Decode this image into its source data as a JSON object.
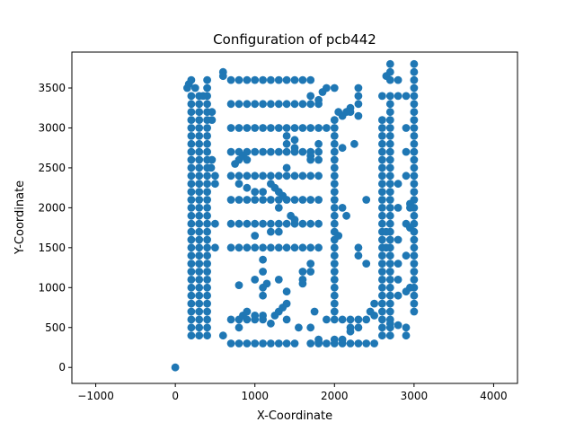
{
  "chart_data": {
    "type": "scatter",
    "title": "Configuration of pcb442",
    "xlabel": "X-Coordinate",
    "ylabel": "Y-Coordinate",
    "xlim": [
      -1300,
      4300
    ],
    "ylim": [
      -200,
      3950
    ],
    "xticks": [
      -1000,
      0,
      1000,
      2000,
      3000,
      4000
    ],
    "yticks": [
      0,
      500,
      1000,
      1500,
      2000,
      2500,
      3000,
      3500
    ],
    "grid": false,
    "legend": "none",
    "marker_color": "#1f77b4",
    "point_groups": [
      {
        "xs": [
          200,
          300,
          400
        ],
        "y_from": 400,
        "y_to": 3400,
        "y_step": 100
      },
      {
        "xs": [
          3000
        ],
        "y_from": 700,
        "y_to": 3800,
        "y_step": 100
      },
      {
        "xs": [
          2600,
          2700
        ],
        "y_from": 400,
        "y_to": 3100,
        "y_step": 100
      },
      {
        "xs": [
          2000
        ],
        "y_from": 600,
        "y_to": 3100,
        "y_step": 100
      },
      {
        "xs": [
          1100
        ],
        "y_from": 300,
        "y_to": 3600,
        "y_step": 300
      },
      {
        "y_values": [
          3600
        ],
        "x_from": 700,
        "x_to": 1700,
        "x_step": 100
      },
      {
        "y_values": [
          3300,
          3000,
          2700,
          2400,
          2100,
          1800,
          1500
        ],
        "x_from": 700,
        "x_to": 1800,
        "x_step": 100
      },
      {
        "y_values": [
          300
        ],
        "x_from": 700,
        "x_to": 1500,
        "x_step": 100
      },
      {
        "y_values": [
          300
        ],
        "x_from": 1800,
        "x_to": 2500,
        "x_step": 100
      },
      {
        "y_values": [
          600
        ],
        "x_from": 1900,
        "x_to": 2400,
        "x_step": 100
      },
      {
        "y_values": [
          600
        ],
        "x_from": 700,
        "x_to": 1000,
        "x_step": 100
      }
    ],
    "points": [
      [
        0,
        0
      ],
      [
        150,
        3500
      ],
      [
        170,
        3550
      ],
      [
        200,
        3600
      ],
      [
        250,
        3500
      ],
      [
        350,
        3400
      ],
      [
        400,
        3500
      ],
      [
        400,
        3600
      ],
      [
        460,
        3200
      ],
      [
        460,
        3100
      ],
      [
        460,
        2600
      ],
      [
        450,
        2500
      ],
      [
        500,
        2400
      ],
      [
        500,
        2300
      ],
      [
        500,
        1800
      ],
      [
        500,
        1500
      ],
      [
        600,
        400
      ],
      [
        600,
        3700
      ],
      [
        600,
        3650
      ],
      [
        2700,
        3800
      ],
      [
        2700,
        3700
      ],
      [
        2650,
        3650
      ],
      [
        2700,
        3600
      ],
      [
        2600,
        3400
      ],
      [
        2700,
        3400
      ],
      [
        2700,
        3300
      ],
      [
        2700,
        3200
      ],
      [
        2800,
        3600
      ],
      [
        2800,
        3400
      ],
      [
        2900,
        3400
      ],
      [
        2900,
        3000
      ],
      [
        2900,
        2700
      ],
      [
        2900,
        2400
      ],
      [
        2800,
        2300
      ],
      [
        2700,
        2300
      ],
      [
        2800,
        2000
      ],
      [
        2900,
        1800
      ],
      [
        2950,
        1750
      ],
      [
        2800,
        1600
      ],
      [
        2900,
        1400
      ],
      [
        2800,
        1300
      ],
      [
        2800,
        1100
      ],
      [
        2900,
        950
      ],
      [
        2800,
        900
      ],
      [
        2800,
        530
      ],
      [
        2900,
        500
      ],
      [
        2900,
        400
      ],
      [
        2450,
        700
      ],
      [
        2500,
        800
      ],
      [
        2600,
        700
      ],
      [
        2950,
        2050
      ],
      [
        2950,
        2000
      ],
      [
        2950,
        1000
      ],
      [
        2300,
        3500
      ],
      [
        2300,
        3400
      ],
      [
        2300,
        3300
      ],
      [
        2200,
        3250
      ],
      [
        2150,
        3200
      ],
      [
        2100,
        3150
      ],
      [
        2000,
        3100
      ],
      [
        2050,
        3200
      ],
      [
        2200,
        3200
      ],
      [
        2300,
        3150
      ],
      [
        1900,
        3500
      ],
      [
        1850,
        3450
      ],
      [
        1700,
        3400
      ],
      [
        1800,
        3350
      ],
      [
        1900,
        3000
      ],
      [
        2000,
        3500
      ],
      [
        2250,
        2800
      ],
      [
        2100,
        2750
      ],
      [
        1800,
        2800
      ],
      [
        1800,
        2600
      ],
      [
        1700,
        2650
      ],
      [
        1700,
        2600
      ],
      [
        1400,
        2900
      ],
      [
        1400,
        2800
      ],
      [
        1500,
        2850
      ],
      [
        1500,
        2750
      ],
      [
        1400,
        2500
      ],
      [
        1300,
        2200
      ],
      [
        1200,
        2300
      ],
      [
        1250,
        2250
      ],
      [
        1350,
        2150
      ],
      [
        1300,
        2000
      ],
      [
        1400,
        1800
      ],
      [
        1450,
        1900
      ],
      [
        1500,
        1850
      ],
      [
        1300,
        1700
      ],
      [
        1200,
        1700
      ],
      [
        1000,
        1650
      ],
      [
        800,
        2300
      ],
      [
        1000,
        2200
      ],
      [
        900,
        2250
      ],
      [
        800,
        2600
      ],
      [
        750,
        2550
      ],
      [
        850,
        2650
      ],
      [
        900,
        2600
      ],
      [
        1000,
        2700
      ],
      [
        1100,
        2200
      ],
      [
        1700,
        1300
      ],
      [
        1600,
        1200
      ],
      [
        1700,
        1200
      ],
      [
        1300,
        1100
      ],
      [
        1600,
        1100
      ],
      [
        1600,
        1050
      ],
      [
        1150,
        1050
      ],
      [
        1100,
        1000
      ],
      [
        1000,
        1100
      ],
      [
        1100,
        1350
      ],
      [
        800,
        1030
      ],
      [
        1100,
        900
      ],
      [
        1400,
        950
      ],
      [
        1300,
        700
      ],
      [
        1350,
        750
      ],
      [
        1400,
        800
      ],
      [
        1250,
        650
      ],
      [
        1400,
        600
      ],
      [
        1550,
        500
      ],
      [
        1700,
        500
      ],
      [
        1700,
        300
      ],
      [
        1800,
        350
      ],
      [
        1750,
        700
      ],
      [
        1200,
        550
      ],
      [
        1100,
        650
      ],
      [
        900,
        700
      ],
      [
        850,
        650
      ],
      [
        1000,
        650
      ],
      [
        800,
        500
      ],
      [
        900,
        600
      ],
      [
        1500,
        300
      ],
      [
        1800,
        320
      ],
      [
        2000,
        350
      ],
      [
        2100,
        350
      ],
      [
        2000,
        1600
      ],
      [
        2050,
        1650
      ],
      [
        2000,
        1700
      ],
      [
        2100,
        2000
      ],
      [
        2150,
        1900
      ],
      [
        2400,
        2100
      ],
      [
        2300,
        1400
      ],
      [
        2400,
        1300
      ],
      [
        2300,
        1500
      ],
      [
        2200,
        500
      ],
      [
        2300,
        500
      ],
      [
        2200,
        450
      ],
      [
        2700,
        550
      ],
      [
        2500,
        650
      ],
      [
        2700,
        1000
      ],
      [
        2650,
        1500
      ],
      [
        2650,
        1700
      ]
    ]
  }
}
